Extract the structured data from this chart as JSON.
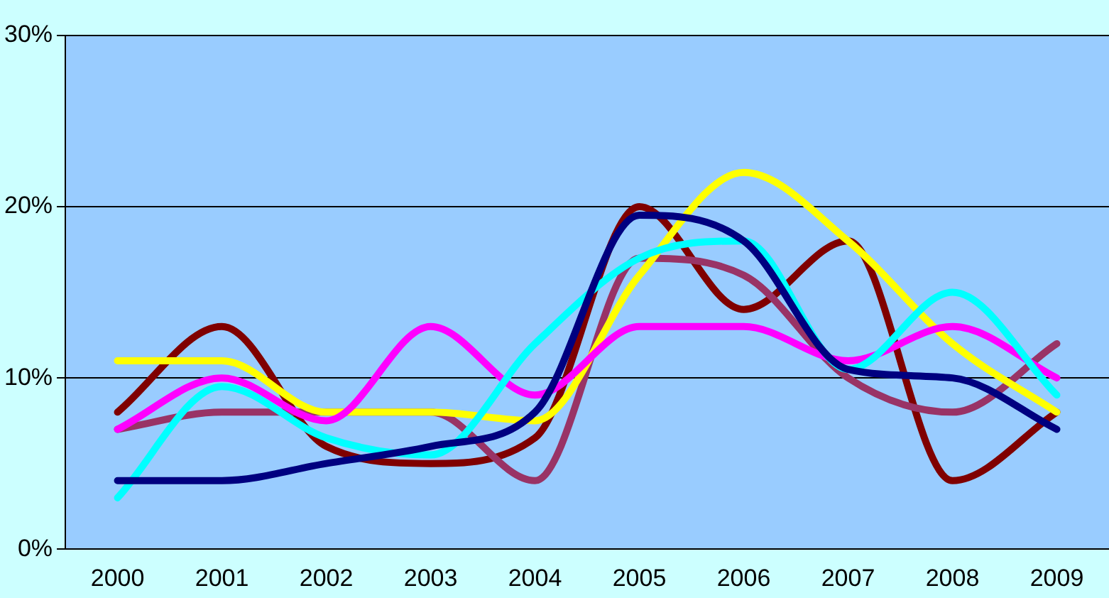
{
  "chart_data": {
    "type": "line",
    "categories": [
      "2000",
      "2001",
      "2002",
      "2003",
      "2004",
      "2005",
      "2006",
      "2007",
      "2008",
      "2009"
    ],
    "series": [
      {
        "color": "#000080",
        "values": [
          4,
          4,
          5,
          6,
          8,
          19.5,
          18,
          10.5,
          10,
          7
        ]
      },
      {
        "color": "#00ffff",
        "values": [
          3,
          9.5,
          6.5,
          5.5,
          12,
          17,
          18,
          10.5,
          15,
          9
        ]
      },
      {
        "color": "#ff00ff",
        "values": [
          7,
          10,
          7.5,
          13,
          9,
          13,
          13,
          11,
          13,
          10
        ]
      },
      {
        "color": "#ffff00",
        "values": [
          11,
          11,
          8,
          8,
          7.5,
          16,
          22,
          18,
          12,
          8
        ]
      },
      {
        "color": "#993366",
        "values": [
          7,
          8,
          8,
          8,
          4,
          17,
          16,
          10,
          8,
          12
        ]
      },
      {
        "color": "#800000",
        "values": [
          8,
          13,
          6,
          5,
          6.5,
          20,
          14,
          18,
          4,
          8
        ]
      }
    ],
    "ylim": [
      0,
      30
    ],
    "yticks": [
      {
        "value": 0,
        "label": "0%"
      },
      {
        "value": 10,
        "label": "10%"
      },
      {
        "value": 20,
        "label": "20%"
      },
      {
        "value": 30,
        "label": "30%"
      }
    ],
    "grid": "y",
    "legend": false,
    "marker": "none",
    "line_style": "solid"
  }
}
